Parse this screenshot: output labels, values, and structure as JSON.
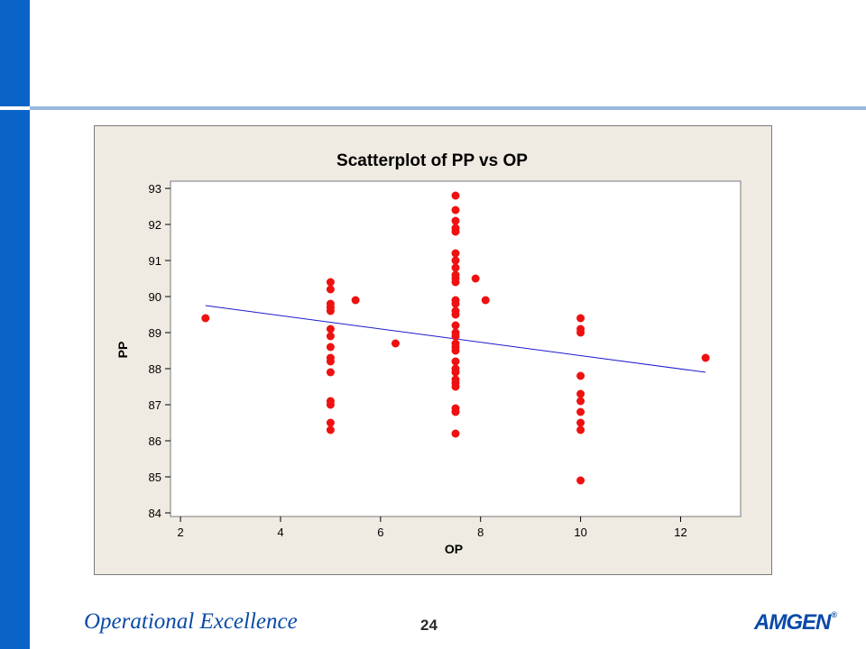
{
  "slide": {
    "footer_title": "Operational Excellence",
    "page_number": "24",
    "logo_text": "AMGEN",
    "logo_mark": "®",
    "accent_color": "#0a64c8"
  },
  "chart_data": {
    "type": "scatter",
    "title": "Scatterplot of PP vs OP",
    "xlabel": "OP",
    "ylabel": "PP",
    "xlim": [
      1.8,
      13.2
    ],
    "ylim": [
      83.9,
      93.2
    ],
    "xticks": [
      2,
      4,
      6,
      8,
      10,
      12
    ],
    "yticks": [
      84,
      85,
      86,
      87,
      88,
      89,
      90,
      91,
      92,
      93
    ],
    "point_color": "#ee1111",
    "fit_color": "#1a1ad0",
    "fit_line": {
      "x": [
        2.5,
        12.5
      ],
      "y": [
        89.75,
        87.9
      ]
    },
    "points": [
      [
        2.5,
        89.4
      ],
      [
        5,
        90.4
      ],
      [
        5,
        90.2
      ],
      [
        5,
        89.8
      ],
      [
        5,
        89.7
      ],
      [
        5,
        89.6
      ],
      [
        5,
        89.1
      ],
      [
        5,
        88.9
      ],
      [
        5,
        88.6
      ],
      [
        5,
        88.3
      ],
      [
        5,
        88.2
      ],
      [
        5,
        87.9
      ],
      [
        5,
        87.1
      ],
      [
        5,
        87.0
      ],
      [
        5,
        86.5
      ],
      [
        5,
        86.3
      ],
      [
        5.5,
        89.9
      ],
      [
        6.3,
        88.7
      ],
      [
        7.5,
        92.8
      ],
      [
        7.5,
        92.4
      ],
      [
        7.5,
        92.1
      ],
      [
        7.5,
        91.9
      ],
      [
        7.5,
        91.8
      ],
      [
        7.5,
        91.2
      ],
      [
        7.5,
        91.0
      ],
      [
        7.5,
        90.8
      ],
      [
        7.5,
        90.6
      ],
      [
        7.5,
        90.5
      ],
      [
        7.5,
        90.4
      ],
      [
        7.5,
        89.9
      ],
      [
        7.5,
        89.8
      ],
      [
        7.5,
        89.6
      ],
      [
        7.5,
        89.5
      ],
      [
        7.5,
        89.2
      ],
      [
        7.5,
        89.0
      ],
      [
        7.5,
        88.9
      ],
      [
        7.5,
        88.7
      ],
      [
        7.5,
        88.6
      ],
      [
        7.5,
        88.5
      ],
      [
        7.5,
        88.2
      ],
      [
        7.5,
        88.0
      ],
      [
        7.5,
        87.9
      ],
      [
        7.5,
        87.7
      ],
      [
        7.5,
        87.6
      ],
      [
        7.5,
        87.5
      ],
      [
        7.5,
        86.9
      ],
      [
        7.5,
        86.8
      ],
      [
        7.5,
        86.2
      ],
      [
        7.9,
        90.5
      ],
      [
        8.1,
        89.9
      ],
      [
        10,
        89.4
      ],
      [
        10,
        89.1
      ],
      [
        10,
        89.0
      ],
      [
        10,
        87.8
      ],
      [
        10,
        87.3
      ],
      [
        10,
        87.1
      ],
      [
        10,
        86.8
      ],
      [
        10,
        86.5
      ],
      [
        10,
        86.3
      ],
      [
        10,
        84.9
      ],
      [
        12.5,
        88.3
      ]
    ]
  }
}
